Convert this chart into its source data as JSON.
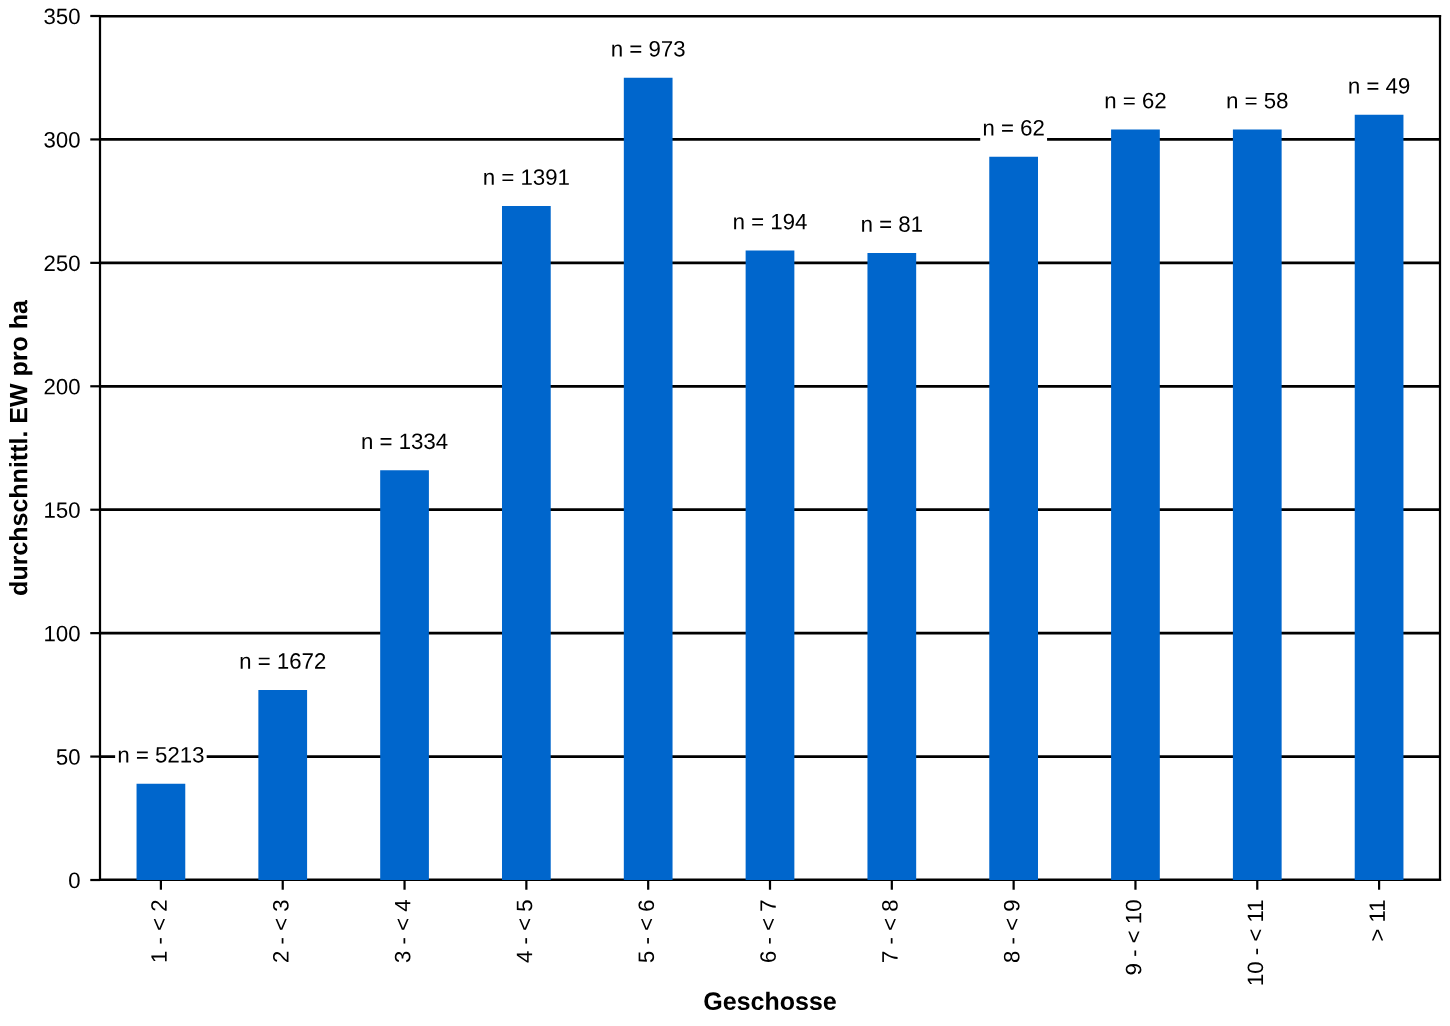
{
  "chart_data": {
    "type": "bar",
    "xlabel": "Geschosse",
    "ylabel": "durchschnittl. EW pro ha",
    "categories": [
      "1 - < 2",
      "2 - < 3",
      "3 - < 4",
      "4 - < 5",
      "5 - < 6",
      "6 - < 7",
      "7 - < 8",
      "8 - < 9",
      "9 - < 10",
      "10 - < 11",
      "> 11"
    ],
    "values": [
      39,
      77,
      166,
      273,
      325,
      255,
      254,
      293,
      304,
      304,
      310
    ],
    "annotations": [
      {
        "text": "n = 5213",
        "x": "1 - < 2",
        "y": 39
      },
      {
        "text": "n = 1672",
        "x": "2 - < 3",
        "y": 77
      },
      {
        "text": "n = 1334",
        "x": "3 - < 4",
        "y": 166
      },
      {
        "text": "n = 1391",
        "x": "4 - < 5",
        "y": 273
      },
      {
        "text": "n = 973",
        "x": "5 - < 6",
        "y": 325
      },
      {
        "text": "n = 194",
        "x": "6 - < 7",
        "y": 255
      },
      {
        "text": "n = 81",
        "x": "7 - < 8",
        "y": 254
      },
      {
        "text": "n = 62",
        "x": "8 - < 9",
        "y": 293
      },
      {
        "text": "n = 62",
        "x": "9 - < 10",
        "y": 304
      },
      {
        "text": "n = 58",
        "x": "10 - < 11",
        "y": 304
      },
      {
        "text": "n = 49",
        "x": "> 11",
        "y": 310
      }
    ],
    "color": "#0066cc",
    "ylim": [
      0,
      350
    ],
    "yticks": [
      0,
      50,
      100,
      150,
      200,
      250,
      300,
      350
    ],
    "grid": "y"
  }
}
